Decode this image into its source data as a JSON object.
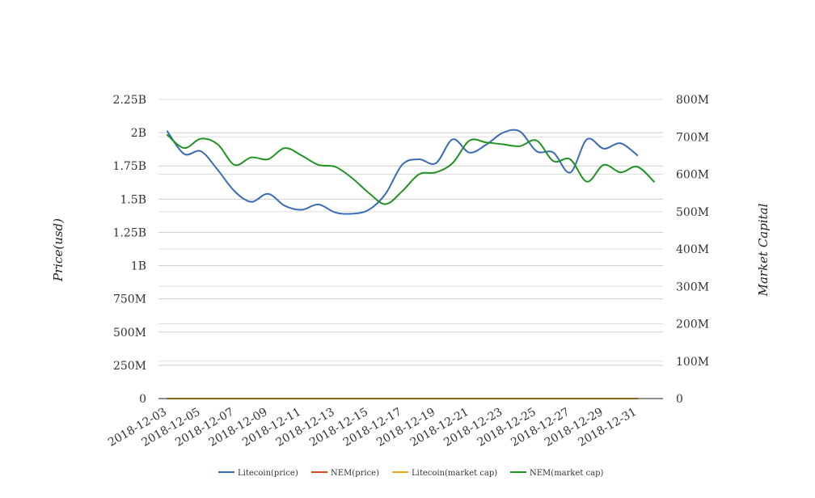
{
  "chart_data": {
    "type": "line",
    "title": "",
    "ylabel_left": "Price(usd)",
    "ylabel_right": "Market Capital",
    "ylim_left": [
      0,
      2250000000
    ],
    "ylim_right": [
      0,
      800000000
    ],
    "left_ticks": [
      {
        "value": 0,
        "label": "0"
      },
      {
        "value": 250000000,
        "label": "250M"
      },
      {
        "value": 500000000,
        "label": "500M"
      },
      {
        "value": 750000000,
        "label": "750M"
      },
      {
        "value": 1000000000,
        "label": "1B"
      },
      {
        "value": 1250000000,
        "label": "1.25B"
      },
      {
        "value": 1500000000,
        "label": "1.5B"
      },
      {
        "value": 1750000000,
        "label": "1.75B"
      },
      {
        "value": 2000000000,
        "label": "2B"
      },
      {
        "value": 2250000000,
        "label": "2.25B"
      }
    ],
    "right_ticks": [
      {
        "value": 0,
        "label": "0"
      },
      {
        "value": 100000000,
        "label": "100M"
      },
      {
        "value": 200000000,
        "label": "200M"
      },
      {
        "value": 300000000,
        "label": "300M"
      },
      {
        "value": 400000000,
        "label": "400M"
      },
      {
        "value": 500000000,
        "label": "500M"
      },
      {
        "value": 600000000,
        "label": "600M"
      },
      {
        "value": 700000000,
        "label": "700M"
      },
      {
        "value": 800000000,
        "label": "800M"
      }
    ],
    "x": [
      "2018-12-03",
      "2018-12-04",
      "2018-12-05",
      "2018-12-06",
      "2018-12-07",
      "2018-12-08",
      "2018-12-09",
      "2018-12-10",
      "2018-12-11",
      "2018-12-12",
      "2018-12-13",
      "2018-12-14",
      "2018-12-15",
      "2018-12-16",
      "2018-12-17",
      "2018-12-18",
      "2018-12-19",
      "2018-12-20",
      "2018-12-21",
      "2018-12-22",
      "2018-12-23",
      "2018-12-24",
      "2018-12-25",
      "2018-12-26",
      "2018-12-27",
      "2018-12-28",
      "2018-12-29",
      "2018-12-30",
      "2018-12-31",
      "2019-01-01"
    ],
    "x_tick_labels": [
      "2018-12-03",
      "2018-12-05",
      "2018-12-07",
      "2018-12-09",
      "2018-12-11",
      "2018-12-13",
      "2018-12-15",
      "2018-12-17",
      "2018-12-19",
      "2018-12-21",
      "2018-12-23",
      "2018-12-25",
      "2018-12-27",
      "2018-12-29",
      "2018-12-31"
    ],
    "series": [
      {
        "name": "Litecoin(price)",
        "axis": "left",
        "color": "#3a6bb5",
        "values": [
          2010000000,
          1840000000,
          1860000000,
          1720000000,
          1560000000,
          1480000000,
          1540000000,
          1450000000,
          1420000000,
          1460000000,
          1400000000,
          1390000000,
          1420000000,
          1540000000,
          1760000000,
          1800000000,
          1770000000,
          1950000000,
          1850000000,
          1910000000,
          2000000000,
          2010000000,
          1860000000,
          1850000000,
          1700000000,
          1950000000,
          1880000000,
          1920000000,
          1830000000,
          null
        ]
      },
      {
        "name": "NEM(price)",
        "axis": "left",
        "color": "#d2491b",
        "values": [
          0.3,
          0.3,
          0.3,
          0.3,
          0.3,
          0.3,
          0.3,
          0.3,
          0.3,
          0.3,
          0.3,
          0.3,
          0.3,
          0.3,
          0.3,
          0.3,
          0.3,
          0.3,
          0.3,
          0.3,
          0.3,
          0.3,
          0.3,
          0.3,
          0.3,
          0.3,
          0.3,
          0.3,
          0.3,
          null
        ]
      },
      {
        "name": "Litecoin(market cap)",
        "axis": "left",
        "color": "#f0a818",
        "values": [
          30,
          30,
          30,
          30,
          30,
          30,
          30,
          30,
          30,
          30,
          30,
          30,
          30,
          30,
          30,
          30,
          30,
          30,
          30,
          30,
          30,
          30,
          30,
          30,
          30,
          30,
          30,
          30,
          30,
          null
        ]
      },
      {
        "name": "NEM(market cap)",
        "axis": "right",
        "color": "#1f9222",
        "values": [
          705000000,
          670000000,
          695000000,
          680000000,
          625000000,
          645000000,
          640000000,
          670000000,
          650000000,
          625000000,
          620000000,
          590000000,
          550000000,
          520000000,
          555000000,
          600000000,
          605000000,
          630000000,
          690000000,
          685000000,
          680000000,
          675000000,
          690000000,
          635000000,
          640000000,
          580000000,
          625000000,
          605000000,
          620000000,
          580000000
        ]
      }
    ],
    "legend_position": "bottom",
    "grid": true
  }
}
